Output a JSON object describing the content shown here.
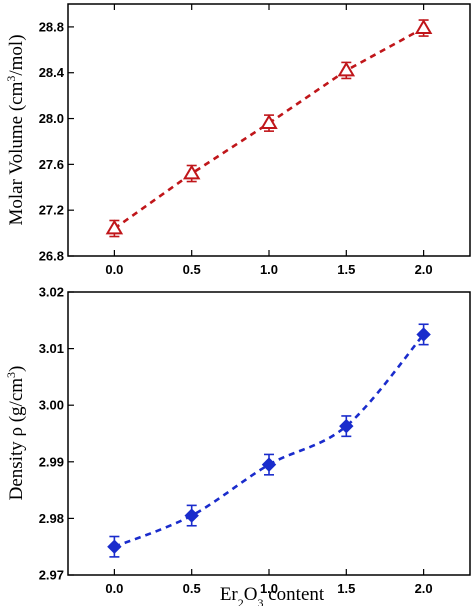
{
  "chart_data": [
    {
      "type": "line",
      "ylabel": "Molar Volume (cm³/mol)",
      "ylabel_parts": {
        "base": "Molar Volume (cm",
        "sup": "3",
        "tail": "/mol)"
      },
      "xlim": [
        -0.3,
        2.3
      ],
      "ylim": [
        26.8,
        29.0
      ],
      "xticks": [
        "0.0",
        "0.5",
        "1.0",
        "1.5",
        "2.0"
      ],
      "xtick_values": [
        0,
        0.5,
        1.0,
        1.5,
        2.0
      ],
      "yticks": [
        "26.8",
        "27.2",
        "27.6",
        "28.0",
        "28.4",
        "28.8"
      ],
      "ytick_values": [
        26.8,
        27.2,
        27.6,
        28.0,
        28.4,
        28.8
      ],
      "series": [
        {
          "x": [
            0,
            0.5,
            1.0,
            1.5,
            2.0
          ],
          "y": [
            27.04,
            27.52,
            27.96,
            28.42,
            28.79
          ],
          "yerr": [
            0.07,
            0.07,
            0.07,
            0.07,
            0.07
          ],
          "marker": "open-triangle",
          "color": "#c0161a",
          "line": "dashed"
        }
      ],
      "grid": false,
      "xticks_on_top": true
    },
    {
      "type": "line",
      "ylabel": "Density ρ (g/cm³)",
      "ylabel_parts": {
        "base": "Density ρ (g/cm",
        "sup": "3",
        "tail": ")"
      },
      "xlabel": "Er₂O₃ content",
      "xlabel_parts": {
        "a": "Er",
        "sub1": "2",
        "b": "O",
        "sub2": "3",
        "c": " content"
      },
      "xlim": [
        -0.3,
        2.3
      ],
      "ylim": [
        2.97,
        3.02
      ],
      "xticks": [
        "0.0",
        "0.5",
        "1.0",
        "1.5",
        "2.0"
      ],
      "xtick_values": [
        0,
        0.5,
        1.0,
        1.5,
        2.0
      ],
      "yticks": [
        "2.97",
        "2.98",
        "2.99",
        "3.00",
        "3.01",
        "3.02"
      ],
      "ytick_values": [
        2.97,
        2.98,
        2.99,
        3.0,
        3.01,
        3.02
      ],
      "series": [
        {
          "x": [
            0,
            0.5,
            1.0,
            1.5,
            2.0
          ],
          "y": [
            2.975,
            2.9805,
            2.9895,
            2.9963,
            3.0125
          ],
          "yerr": [
            0.0018,
            0.0018,
            0.0018,
            0.0018,
            0.0018
          ],
          "marker": "filled-diamond",
          "color": "#1a2ccc",
          "line": "dashed-curve"
        }
      ],
      "grid": false
    }
  ]
}
